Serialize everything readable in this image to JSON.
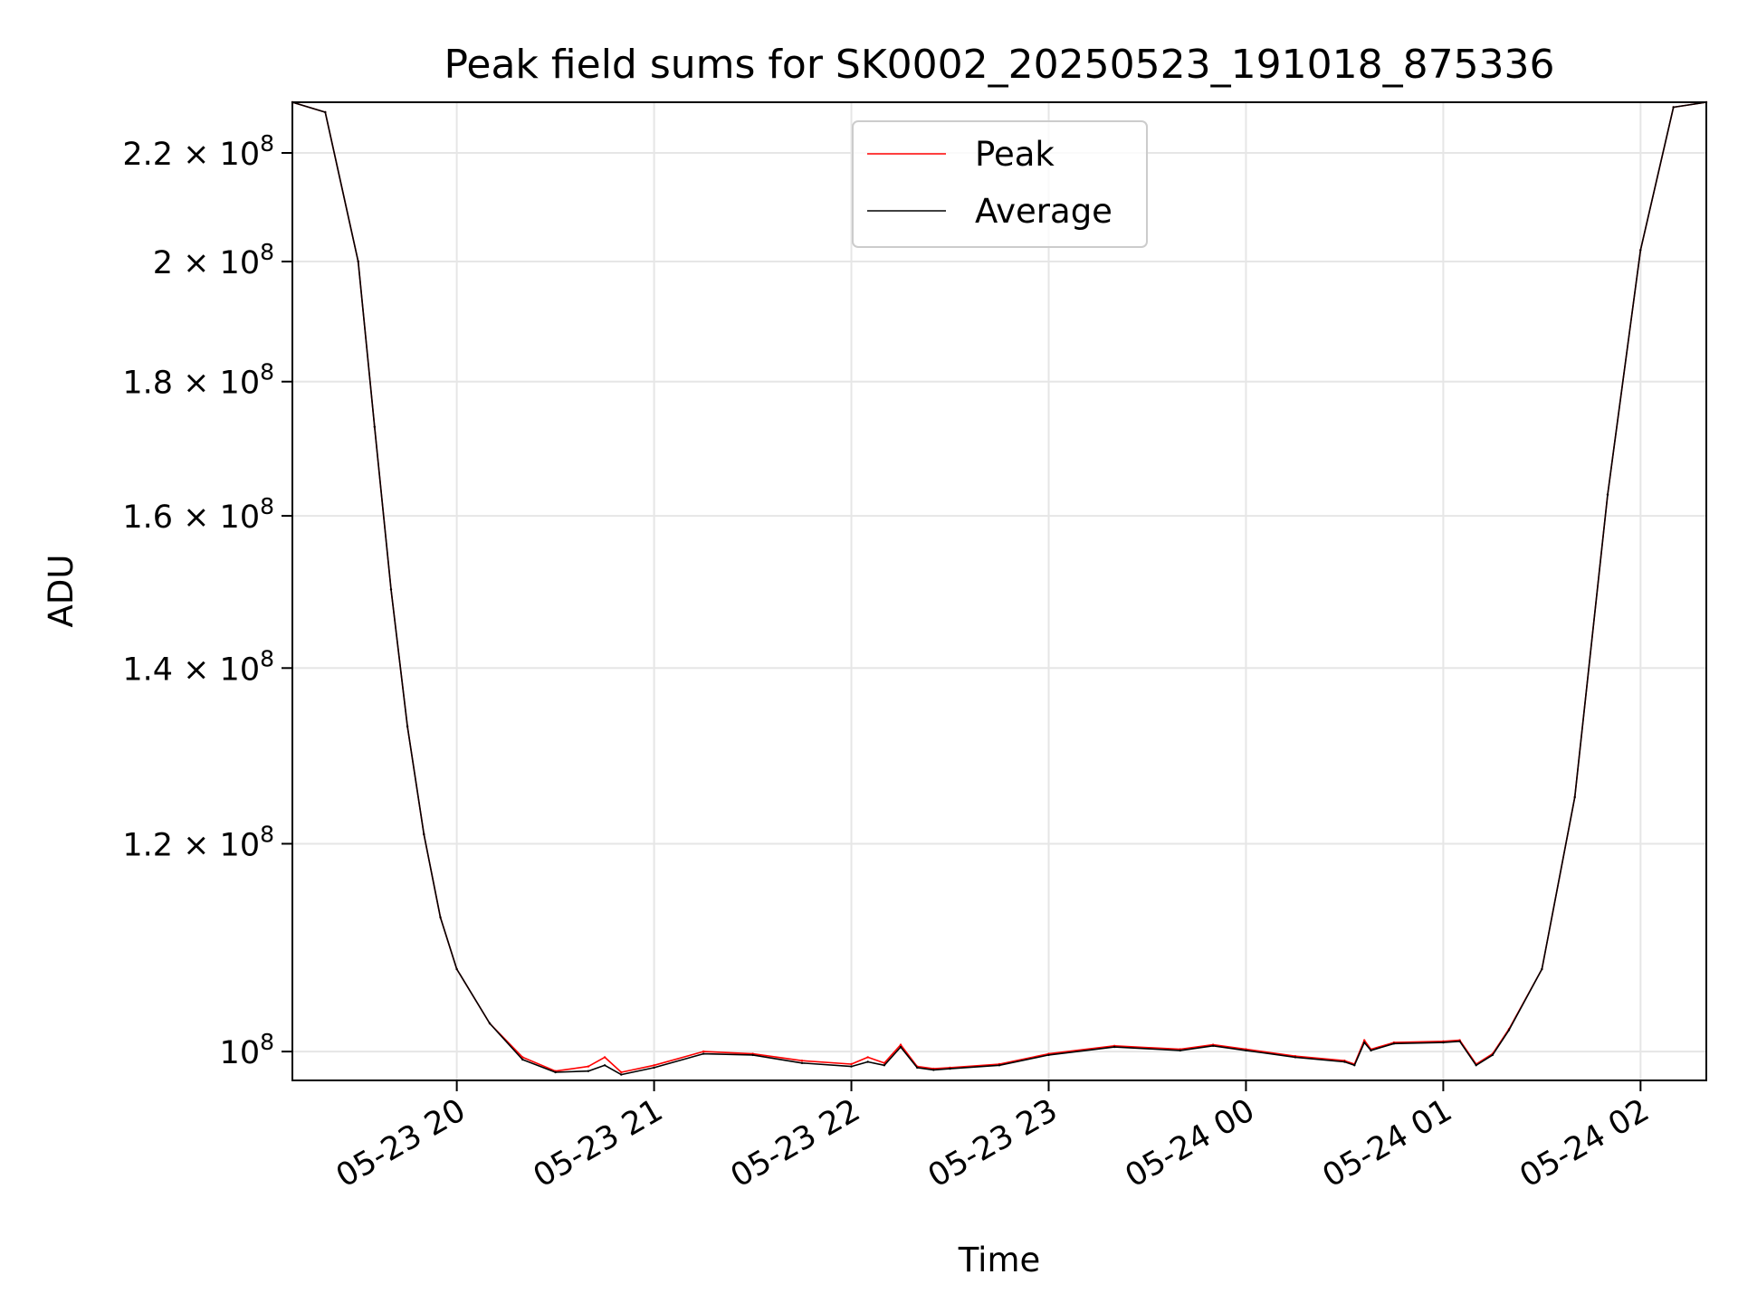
{
  "chart_data": {
    "type": "line",
    "title": "Peak field sums for SK0002_20250523_191018_875336",
    "xlabel": "Time",
    "ylabel": "ADU",
    "x_scale": "time",
    "y_scale": "log",
    "xlim": [
      "2025-05-23 19:10",
      "2025-05-24 02:20"
    ],
    "ylim": [
      97500000,
      230000000
    ],
    "xticks": [
      {
        "value": "2025-05-23 20:00",
        "label": "05-23 20"
      },
      {
        "value": "2025-05-23 21:00",
        "label": "05-23 21"
      },
      {
        "value": "2025-05-23 22:00",
        "label": "05-23 22"
      },
      {
        "value": "2025-05-23 23:00",
        "label": "05-23 23"
      },
      {
        "value": "2025-05-24 00:00",
        "label": "05-24 00"
      },
      {
        "value": "2025-05-24 01:00",
        "label": "05-24 01"
      },
      {
        "value": "2025-05-24 02:00",
        "label": "05-24 02"
      }
    ],
    "yticks": [
      {
        "value": 100000000,
        "mantissa": "10",
        "exponent": "8"
      },
      {
        "value": 120000000,
        "mantissa": "1.2 × 10",
        "exponent": "8"
      },
      {
        "value": 140000000,
        "mantissa": "1.4 × 10",
        "exponent": "8"
      },
      {
        "value": 160000000,
        "mantissa": "1.6 × 10",
        "exponent": "8"
      },
      {
        "value": 180000000,
        "mantissa": "1.8 × 10",
        "exponent": "8"
      },
      {
        "value": 200000000,
        "mantissa": "2 × 10",
        "exponent": "8"
      },
      {
        "value": 220000000,
        "mantissa": "2.2 × 10",
        "exponent": "8"
      }
    ],
    "grid": true,
    "legend_position": "top-center",
    "series": [
      {
        "name": "Peak",
        "color": "#ff0000",
        "x": [
          "2025-05-23 19:10",
          "2025-05-23 19:20",
          "2025-05-23 19:30",
          "2025-05-23 19:35",
          "2025-05-23 19:40",
          "2025-05-23 19:45",
          "2025-05-23 19:50",
          "2025-05-23 19:55",
          "2025-05-23 20:00",
          "2025-05-23 20:10",
          "2025-05-23 20:20",
          "2025-05-23 20:30",
          "2025-05-23 20:40",
          "2025-05-23 20:45",
          "2025-05-23 20:50",
          "2025-05-23 21:00",
          "2025-05-23 21:15",
          "2025-05-23 21:30",
          "2025-05-23 21:45",
          "2025-05-23 22:00",
          "2025-05-23 22:05",
          "2025-05-23 22:10",
          "2025-05-23 22:15",
          "2025-05-23 22:20",
          "2025-05-23 22:25",
          "2025-05-23 22:30",
          "2025-05-23 22:45",
          "2025-05-23 23:00",
          "2025-05-23 23:20",
          "2025-05-23 23:40",
          "2025-05-23 23:50",
          "2025-05-24 00:00",
          "2025-05-24 00:15",
          "2025-05-24 00:30",
          "2025-05-24 00:33",
          "2025-05-24 00:36",
          "2025-05-24 00:38",
          "2025-05-24 00:45",
          "2025-05-24 01:00",
          "2025-05-24 01:05",
          "2025-05-24 01:10",
          "2025-05-24 01:15",
          "2025-05-24 01:20",
          "2025-05-24 01:30",
          "2025-05-24 01:40",
          "2025-05-24 01:50",
          "2025-05-24 02:00",
          "2025-05-24 02:10",
          "2025-05-24 02:20"
        ],
        "y": [
          230000000,
          228000000,
          200000000,
          173000000,
          150000000,
          133000000,
          121000000,
          112500000,
          107500000,
          102500000,
          99500000,
          98300000,
          98700000,
          99500000,
          98200000,
          98800000,
          100000000,
          99800000,
          99200000,
          98900000,
          99500000,
          99000000,
          100600000,
          98700000,
          98500000,
          98600000,
          98900000,
          99800000,
          100500000,
          100200000,
          100600000,
          100200000,
          99600000,
          99200000,
          98900000,
          101000000,
          100200000,
          100800000,
          100900000,
          101000000,
          98900000,
          99800000,
          102000000,
          107500000,
          125000000,
          163000000,
          202000000,
          229000000,
          230000000
        ]
      },
      {
        "name": "Average",
        "color": "#000000",
        "x": [
          "2025-05-23 19:10",
          "2025-05-23 19:20",
          "2025-05-23 19:30",
          "2025-05-23 19:35",
          "2025-05-23 19:40",
          "2025-05-23 19:45",
          "2025-05-23 19:50",
          "2025-05-23 19:55",
          "2025-05-23 20:00",
          "2025-05-23 20:10",
          "2025-05-23 20:20",
          "2025-05-23 20:30",
          "2025-05-23 20:40",
          "2025-05-23 20:45",
          "2025-05-23 20:50",
          "2025-05-23 21:00",
          "2025-05-23 21:15",
          "2025-05-23 21:30",
          "2025-05-23 21:45",
          "2025-05-23 22:00",
          "2025-05-23 22:05",
          "2025-05-23 22:10",
          "2025-05-23 22:15",
          "2025-05-23 22:20",
          "2025-05-23 22:25",
          "2025-05-23 22:30",
          "2025-05-23 22:45",
          "2025-05-23 23:00",
          "2025-05-23 23:20",
          "2025-05-23 23:40",
          "2025-05-23 23:50",
          "2025-05-24 00:00",
          "2025-05-24 00:15",
          "2025-05-24 00:30",
          "2025-05-24 00:33",
          "2025-05-24 00:36",
          "2025-05-24 00:38",
          "2025-05-24 00:45",
          "2025-05-24 01:00",
          "2025-05-24 01:05",
          "2025-05-24 01:10",
          "2025-05-24 01:15",
          "2025-05-24 01:20",
          "2025-05-24 01:30",
          "2025-05-24 01:40",
          "2025-05-24 01:50",
          "2025-05-24 02:00",
          "2025-05-24 02:10",
          "2025-05-24 02:20"
        ],
        "y": [
          230000000,
          228000000,
          200000000,
          173000000,
          150000000,
          133000000,
          121000000,
          112500000,
          107500000,
          102500000,
          99300000,
          98200000,
          98300000,
          98800000,
          98000000,
          98600000,
          99800000,
          99700000,
          99000000,
          98700000,
          99100000,
          98800000,
          100400000,
          98600000,
          98400000,
          98500000,
          98800000,
          99700000,
          100400000,
          100100000,
          100500000,
          100100000,
          99500000,
          99100000,
          98800000,
          100800000,
          100100000,
          100700000,
          100800000,
          100900000,
          98800000,
          99700000,
          101900000,
          107500000,
          125000000,
          163000000,
          202000000,
          229000000,
          230000000
        ]
      }
    ]
  }
}
